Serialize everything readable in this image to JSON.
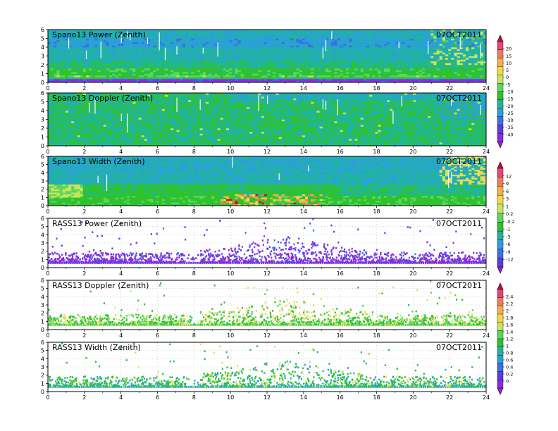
{
  "figure": {
    "x_ticks": [
      "0",
      "2",
      "4",
      "6",
      "8",
      "10",
      "12",
      "14",
      "16",
      "18",
      "20",
      "22",
      "24"
    ],
    "y_ticks": [
      "0",
      "1",
      "2",
      "3",
      "4",
      "5",
      "6"
    ]
  },
  "chart_data": [
    {
      "type": "heatmap",
      "title": "Spano13 Power (Zenith)",
      "date": "07OCT2011",
      "xlim": [
        0,
        24
      ],
      "ylim": [
        0,
        6
      ],
      "colorbar": "power"
    },
    {
      "type": "heatmap",
      "title": "Spano13 Doppler (Zenith)",
      "date": "07OCT2011",
      "xlim": [
        0,
        24
      ],
      "ylim": [
        0,
        6
      ],
      "colorbar": "power"
    },
    {
      "type": "heatmap",
      "title": "Spano13 Width (Zenith)",
      "date": "07OCT2011",
      "xlim": [
        0,
        24
      ],
      "ylim": [
        0,
        6
      ],
      "colorbar": "width"
    },
    {
      "type": "heatmap",
      "title": "RASS13 Power (Zenith)",
      "date": "07OCT2011",
      "xlim": [
        0,
        24
      ],
      "ylim": [
        0,
        6
      ],
      "colorbar": "width"
    },
    {
      "type": "heatmap",
      "title": "RASS13 Doppler (Zenith)",
      "date": "07OCT2011",
      "xlim": [
        0,
        24
      ],
      "ylim": [
        0,
        6
      ],
      "colorbar": "rass"
    },
    {
      "type": "heatmap",
      "title": "RASS13 Width (Zenith)",
      "date": "07OCT2011",
      "xlim": [
        0,
        24
      ],
      "ylim": [
        0,
        6
      ],
      "colorbar": "rass"
    }
  ],
  "colorbars": {
    "power": {
      "labels": [
        "20",
        "15",
        "10",
        "5",
        "0",
        "-5",
        "-10",
        "-15",
        "-20",
        "-25",
        "-30",
        "-35",
        "-40"
      ],
      "colors": [
        "#c8102e",
        "#e8447a",
        "#f07a5a",
        "#f5b04a",
        "#f5d84a",
        "#c8e65a",
        "#5cd65c",
        "#2ec22e",
        "#20b4a0",
        "#2aa0d8",
        "#3c6ee6",
        "#5a3ce6",
        "#8a2ce6",
        "#a020c8"
      ]
    },
    "width": {
      "labels": [
        "12",
        "9",
        "6",
        "3",
        "1",
        "0.2",
        "-0.2",
        "-1",
        "-3",
        "-6",
        "-9",
        "-12"
      ],
      "colors": [
        "#c8102e",
        "#e8447a",
        "#f07a5a",
        "#f5b04a",
        "#f5d84a",
        "#c8e65a",
        "#5cd65c",
        "#2ec22e",
        "#20b4a0",
        "#2aa0d8",
        "#3c6ee6",
        "#5a3ce6",
        "#a020c8"
      ]
    },
    "rass": {
      "labels": [
        "2.4",
        "2.2",
        "2",
        "1.8",
        "1.6",
        "1.4",
        "1.2",
        "1",
        "0.8",
        "0.6",
        "0.4",
        "0.2",
        "0"
      ],
      "colors": [
        "#c8102e",
        "#e8447a",
        "#f07a5a",
        "#f5b04a",
        "#f5d84a",
        "#c8e65a",
        "#5cd65c",
        "#2ec22e",
        "#20b4a0",
        "#2aa0d8",
        "#3c6ee6",
        "#5a3ce6",
        "#8a2ce6",
        "#a020c8"
      ]
    }
  }
}
